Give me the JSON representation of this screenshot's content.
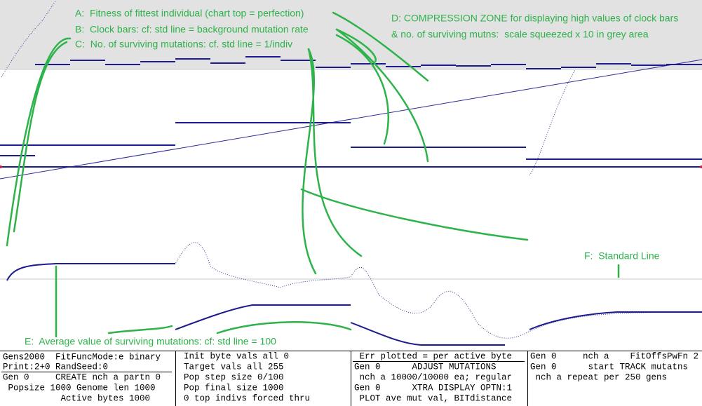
{
  "annotations": {
    "a": "A:  Fitness of fittest individual (chart top = perfection)",
    "b": "B:  Clock bars: cf: std line = background mutation rate",
    "c": "C:  No. of surviving mutations: cf. std line = 1/indiv",
    "d1": "D: COMPRESSION ZONE for displaying high values of clock bars",
    "d2": "& no. of surviving mutns:  scale squeezed x 10 in grey area",
    "e": "E:  Average value of surviving mutations: cf: std line = 100",
    "f": "F:  Standard Line"
  },
  "panel": {
    "col1": [
      "Gens2000  FitFuncMode:e binary",
      "Print:2+0 RandSeed:0",
      "Gen 0     CREATE nch a partn 0",
      " Popsize 1000 Genome len 1000",
      "           Active bytes 1000"
    ],
    "col2": [
      "Init byte vals all 0",
      "Target vals all 255",
      "Pop step size 0/100",
      "Pop final size 1000",
      "0 top indivs forced thru"
    ],
    "col3": [
      " Err plotted = per active byte",
      "Gen 0      ADJUST MUTATIONS",
      " nch a 10000/10000 ea; regular",
      "Gen 0      XTRA DISPLAY OPTN:1",
      " PLOT ave mut val, BITdistance"
    ],
    "col4": [
      "Gen 0     nch a    FitOffsPwFn 2",
      "Gen 0      start TRACK mutatns",
      " nch a repeat per 250 gens"
    ]
  }
}
